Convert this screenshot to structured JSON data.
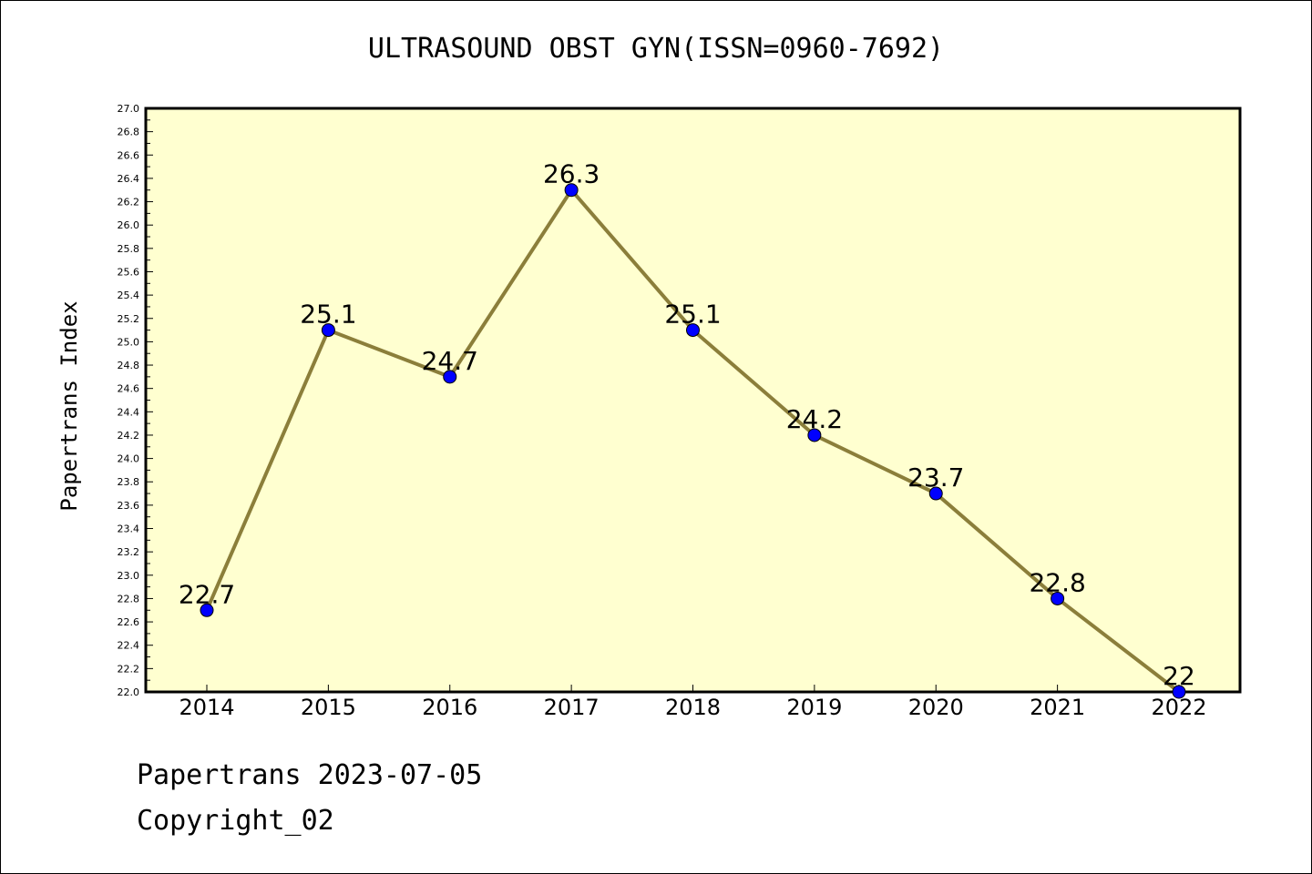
{
  "header": {
    "title": "ULTRASOUND OBST GYN(ISSN=0960-7692)"
  },
  "footer": {
    "line1": "Papertrans 2023-07-05",
    "line2": "Copyright_02"
  },
  "colors": {
    "plot_background": "#ffffd0",
    "line": "#8b7e3a",
    "marker": "#0000ff"
  },
  "chart_data": {
    "type": "line",
    "title": "ULTRASOUND OBST GYN(ISSN=0960-7692)",
    "xlabel": "",
    "ylabel": "Papertrans Index",
    "x": [
      "2014",
      "2015",
      "2016",
      "2017",
      "2018",
      "2019",
      "2020",
      "2021",
      "2022"
    ],
    "series": [
      {
        "values": [
          22.7,
          25.1,
          24.7,
          26.3,
          25.1,
          24.2,
          23.7,
          22.8,
          22.0
        ],
        "labels": [
          "22.7",
          "25.1",
          "24.7",
          "26.3",
          "25.1",
          "24.2",
          "23.7",
          "22.8",
          "22"
        ]
      }
    ],
    "ylim": [
      22.0,
      27.0
    ],
    "yticks": [
      "22.0",
      "22.2",
      "22.4",
      "22.6",
      "22.8",
      "23.0",
      "23.2",
      "23.4",
      "23.6",
      "23.8",
      "24.0",
      "24.2",
      "24.4",
      "24.6",
      "24.8",
      "25.0",
      "25.2",
      "25.4",
      "25.6",
      "25.8",
      "26.0",
      "26.2",
      "26.4",
      "26.6",
      "26.8",
      "27.0"
    ],
    "grid": false,
    "legend": "none"
  }
}
